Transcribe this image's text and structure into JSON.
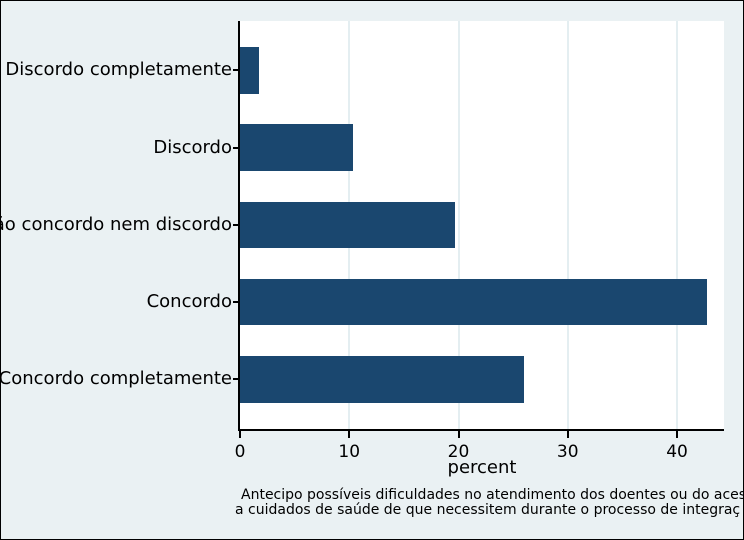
{
  "chart_data": {
    "type": "bar",
    "orientation": "horizontal",
    "title": "",
    "categories": [
      "Discordo completamente",
      "Discordo",
      "Não concordo nem discordo",
      "Concordo",
      "Concordo completamente"
    ],
    "values": [
      1.7,
      10.3,
      19.7,
      42.7,
      26.0
    ],
    "xlabel": "percent",
    "ylabel": "",
    "xticks": [
      0,
      10,
      20,
      30,
      40
    ],
    "xlim": [
      0,
      44.3
    ],
    "grid": "vertical gridlines at x ticks",
    "legend": "none",
    "caption_lines": [
      "Antecipo possíveis dificuldades no atendimento dos doentes ou do aces",
      "a cuidados de saúde de que necessitem durante o processo de integraç"
    ],
    "colors": {
      "bar": "#1a476f",
      "figure_background": "#eaf1f3",
      "plot_background": "#ffffff",
      "gridline": "#e4eef1",
      "axis": "#000000",
      "text": "#000000",
      "figure_border": "#000000"
    }
  }
}
